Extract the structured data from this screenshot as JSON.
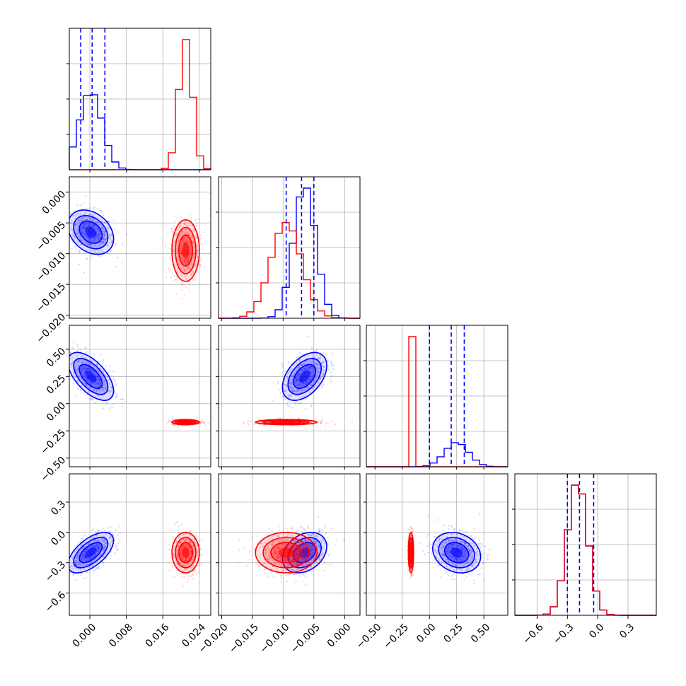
{
  "colors": {
    "series_a": "#0000ff",
    "series_b": "#ff0000",
    "grid": "#b0b0b0"
  },
  "chart_data": {
    "type": "corner",
    "grid": true,
    "legend": "none",
    "parameters": [
      {
        "range": [
          -0.0045,
          0.0265
        ],
        "ticks": [
          0.0,
          0.008,
          0.016,
          0.024
        ],
        "tick_labels": [
          "0.000",
          "0.008",
          "0.016",
          "0.024"
        ]
      },
      {
        "range": [
          -0.0205,
          0.0025
        ],
        "ticks": [
          -0.02,
          -0.015,
          -0.01,
          -0.005,
          0.0
        ],
        "tick_labels": [
          "−0.020",
          "−0.015",
          "−0.010",
          "−0.005",
          "0.000"
        ]
      },
      {
        "range": [
          -0.58,
          0.72
        ],
        "ticks": [
          -0.5,
          -0.25,
          0.0,
          0.25,
          0.5
        ],
        "tick_labels": [
          "−0.50",
          "−0.25",
          "0.00",
          "0.25",
          "0.50"
        ]
      },
      {
        "range": [
          -0.82,
          0.58
        ],
        "ticks": [
          -0.6,
          -0.3,
          0.0,
          0.3
        ],
        "tick_labels": [
          "−0.6",
          "−0.3",
          "0.0",
          "0.3"
        ]
      }
    ],
    "series": [
      {
        "color": "#0000ff",
        "means": [
          0.0002,
          -0.0065,
          0.25,
          -0.2
        ],
        "sigmas": [
          0.0025,
          0.0018,
          0.11,
          0.1
        ],
        "correlations": [
          [
            0,
            1,
            -0.3
          ],
          [
            0,
            2,
            -0.6
          ],
          [
            0,
            3,
            0.6
          ],
          [
            1,
            2,
            0.45
          ],
          [
            1,
            3,
            0.3
          ],
          [
            2,
            3,
            -0.2
          ]
        ],
        "quantiles": [
          [
            -0.002,
            0.0005,
            0.0033
          ],
          [
            -0.0095,
            -0.007,
            -0.005
          ],
          [
            0.0,
            0.2,
            0.32
          ],
          [
            -0.3,
            -0.18,
            -0.04
          ]
        ]
      },
      {
        "color": "#ff0000",
        "means": [
          0.021,
          -0.0095,
          -0.17,
          -0.2
        ],
        "sigmas": [
          0.0015,
          0.0025,
          0.012,
          0.1
        ],
        "correlations": [
          [
            0,
            1,
            0.0
          ],
          [
            0,
            2,
            0.0
          ],
          [
            0,
            3,
            0.0
          ],
          [
            1,
            2,
            0.0
          ],
          [
            1,
            3,
            0.0
          ],
          [
            2,
            3,
            0.0
          ]
        ]
      }
    ]
  }
}
